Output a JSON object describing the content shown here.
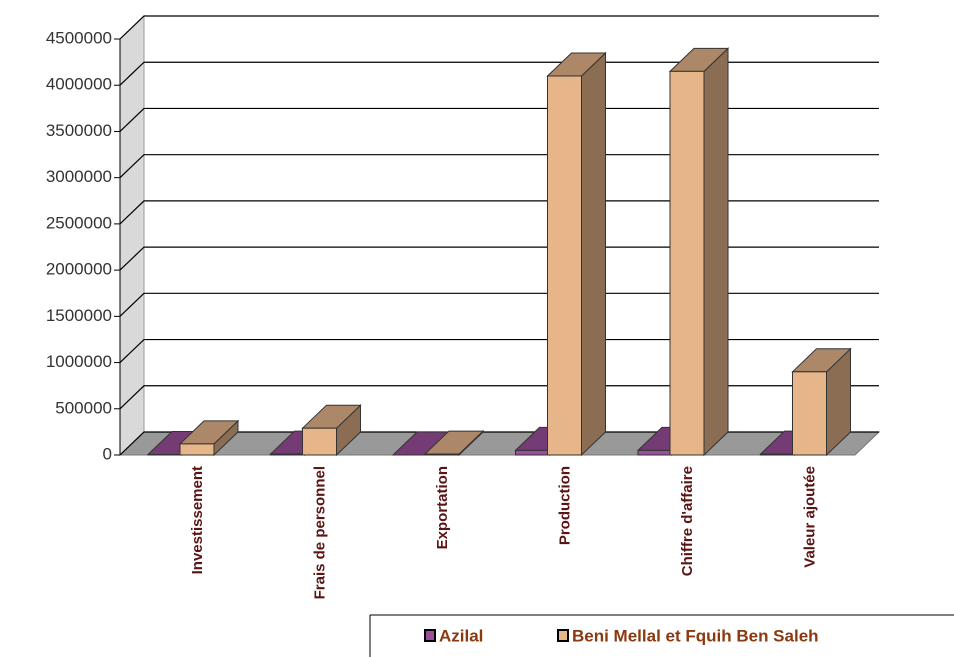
{
  "chart_data": {
    "type": "bar3d",
    "categories": [
      "Investissement",
      "Frais de personnel",
      "Exportation",
      "Production",
      "Chiffre d'affaire",
      "Valeur ajoutée"
    ],
    "series": [
      {
        "name": "Azilal",
        "color": "#9b4f9b",
        "values": [
          5000,
          10000,
          0,
          50000,
          50000,
          10000
        ]
      },
      {
        "name": "Beni Mellal et Fquih Ben Saleh",
        "color": "#e6b58a",
        "values": [
          120000,
          290000,
          10000,
          4100000,
          4150000,
          900000
        ]
      }
    ],
    "ylim": [
      0,
      4500000
    ],
    "yticks": [
      0,
      500000,
      1000000,
      1500000,
      2000000,
      2500000,
      3000000,
      3500000,
      4000000,
      4500000
    ],
    "grid": true
  }
}
